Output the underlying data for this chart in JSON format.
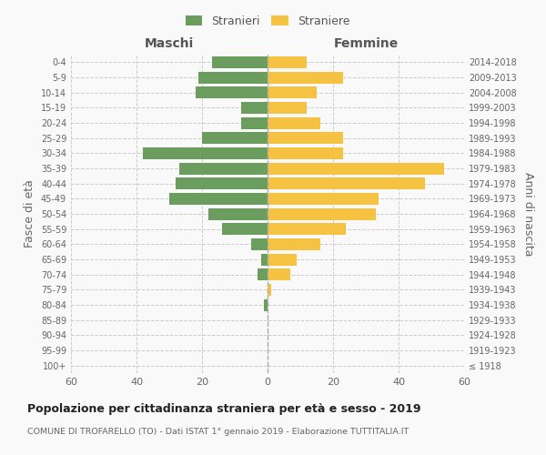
{
  "age_groups": [
    "100+",
    "95-99",
    "90-94",
    "85-89",
    "80-84",
    "75-79",
    "70-74",
    "65-69",
    "60-64",
    "55-59",
    "50-54",
    "45-49",
    "40-44",
    "35-39",
    "30-34",
    "25-29",
    "20-24",
    "15-19",
    "10-14",
    "5-9",
    "0-4"
  ],
  "birth_years": [
    "≤ 1918",
    "1919-1923",
    "1924-1928",
    "1929-1933",
    "1934-1938",
    "1939-1943",
    "1944-1948",
    "1949-1953",
    "1954-1958",
    "1959-1963",
    "1964-1968",
    "1969-1973",
    "1974-1978",
    "1979-1983",
    "1984-1988",
    "1989-1993",
    "1994-1998",
    "1999-2003",
    "2004-2008",
    "2009-2013",
    "2014-2018"
  ],
  "maschi": [
    0,
    0,
    0,
    0,
    1,
    0,
    3,
    2,
    5,
    14,
    18,
    30,
    28,
    27,
    38,
    20,
    8,
    8,
    22,
    21,
    17
  ],
  "femmine": [
    0,
    0,
    0,
    0,
    0,
    1,
    7,
    9,
    16,
    24,
    33,
    34,
    48,
    54,
    23,
    23,
    16,
    12,
    15,
    23,
    12
  ],
  "maschi_color": "#6b9e5e",
  "femmine_color": "#f5c242",
  "background_color": "#f9f9f9",
  "grid_color": "#cccccc",
  "title": "Popolazione per cittadinanza straniera per età e sesso - 2019",
  "subtitle": "COMUNE DI TROFARELLO (TO) - Dati ISTAT 1° gennaio 2019 - Elaborazione TUTTITALIA.IT",
  "xlabel_left": "Maschi",
  "xlabel_right": "Femmine",
  "ylabel_left": "Fasce di età",
  "ylabel_right": "Anni di nascita",
  "xlim": 60,
  "legend_stranieri": "Stranieri",
  "legend_straniere": "Straniere"
}
